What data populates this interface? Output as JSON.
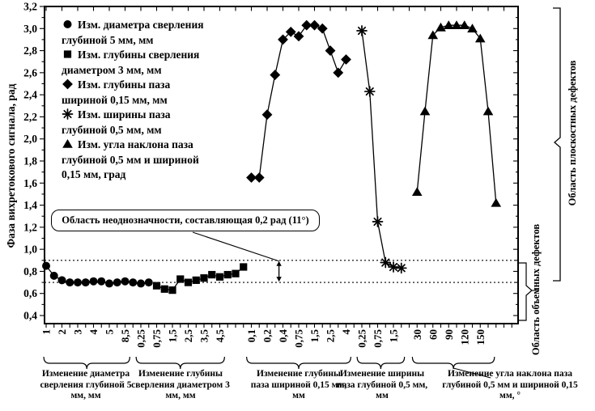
{
  "chart_data": {
    "type": "line",
    "title": "",
    "ylabel": "Фаза вихретокового сигнала, рад",
    "ylim": [
      0.4,
      3.2
    ],
    "y_major_step": 0.2,
    "y_minor_step": 0.1,
    "grid": false,
    "legend_position": "top-left inside",
    "series": [
      {
        "name": "Изм. диаметра сверления глубиной 5 мм, мм",
        "marker": "circle",
        "start_slot": 0,
        "values": [
          0.85,
          0.76,
          0.72,
          0.7,
          0.7,
          0.7,
          0.71,
          0.71,
          0.69,
          0.7,
          0.71,
          0.7,
          0.69,
          0.7
        ]
      },
      {
        "name": "Изм. глубины сверления диаметром 3 мм, мм",
        "marker": "square",
        "start_slot": 14,
        "values": [
          0.67,
          0.64,
          0.63,
          0.73,
          0.7,
          0.72,
          0.74,
          0.77,
          0.75,
          0.77,
          0.78,
          0.84
        ]
      },
      {
        "name": "Изм. глубины паза шириной 0,15 мм, мм",
        "marker": "diamond",
        "start_slot": 26,
        "values": [
          1.65,
          1.65,
          2.22,
          2.58,
          2.9,
          2.97,
          2.93,
          3.03,
          3.03,
          3.0,
          2.8,
          2.6,
          2.72
        ]
      },
      {
        "name": "Изм. ширины паза глубиной 0,5 мм, мм",
        "marker": "asterisk",
        "start_slot": 40,
        "values": [
          2.98,
          2.43,
          1.25,
          0.88,
          0.84,
          0.83
        ]
      },
      {
        "name": "Изм. угла наклона паза глубиной 0,5 мм и шириной 0,15 мм, град",
        "marker": "triangle",
        "start_slot": 47,
        "values": [
          1.52,
          2.25,
          2.94,
          3.01,
          3.03,
          3.03,
          3.03,
          3.0,
          2.91,
          2.25,
          1.42
        ]
      }
    ],
    "x_groups": [
      {
        "labels": [
          "1",
          "2",
          "3",
          "4",
          "5",
          "8,5"
        ],
        "label_slots": [
          0,
          2,
          4,
          6,
          8,
          10
        ],
        "brace_slots": [
          -0.3,
          10.6
        ],
        "caption": "Изменение диаметра сверления глубиной 5 мм, мм"
      },
      {
        "labels": [
          "0,25",
          "0,75",
          "1,5",
          "2,5",
          "3,5",
          "4,5"
        ],
        "label_slots": [
          12,
          14,
          16,
          18,
          20,
          22
        ],
        "brace_slots": [
          11.4,
          22.6
        ],
        "caption": "Изменение глубины сверления диаметром 3 мм, мм"
      },
      {
        "labels": [
          "0,1",
          "0,2",
          "0,4",
          "0,75",
          "1,5",
          "2,5",
          "4"
        ],
        "label_slots": [
          26,
          28,
          30,
          32,
          34,
          36,
          38
        ],
        "brace_slots": [
          25.4,
          38.6
        ],
        "caption": "Изменение глубины паза шириной 0,15 мм, мм"
      },
      {
        "labels": [
          "0,25",
          "0,75",
          "1,5"
        ],
        "label_slots": [
          40,
          42,
          44
        ],
        "brace_slots": [
          39.4,
          45.4
        ],
        "caption": "Изменение ширины паза глубиной 0,5 мм, мм"
      },
      {
        "labels": [
          "30",
          "60",
          "90",
          "120",
          "150"
        ],
        "label_slots": [
          47,
          49,
          51,
          53,
          55
        ],
        "brace_slots": [
          46.4,
          56.8
        ],
        "caption": "Изменение угла наклона паза глубиной 0,5 мм и шириной 0,15 мм, °"
      }
    ],
    "reference_band": {
      "top_value": 0.9,
      "bottom_value": 0.7,
      "style": "dotted",
      "arrow_x_slot": 29.5
    },
    "annotation": {
      "text": "Область неоднозначности, составляющая 0,2 рад (11°)"
    },
    "regions": {
      "planar": "Область плоскостных дефектов",
      "volumetric": "Область объемных дефектов"
    }
  }
}
